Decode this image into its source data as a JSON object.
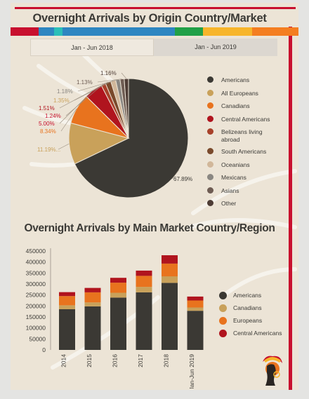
{
  "page": {
    "title": "Overnight Arrivals by Origin Country/Market",
    "tabs": [
      {
        "label": "Jan - Jun 2018"
      },
      {
        "label": "Jan - Jun 2019"
      }
    ],
    "strip_colors": [
      "#c8102e",
      "#2e86c1",
      "#2bbfb8",
      "#2e86c1",
      "#c8102e",
      "#22a047",
      "#f7b52a",
      "#f47e20"
    ]
  },
  "chart_data": [
    {
      "type": "pie",
      "title": "",
      "series": [
        {
          "name": "Americans",
          "value": 67.89,
          "label": "67.89%",
          "color": "#3b3934"
        },
        {
          "name": "All Europeans",
          "value": 11.19,
          "label": "11.19%...",
          "color": "#c9a15a"
        },
        {
          "name": "Canadians",
          "value": 8.34,
          "label": "8.34%",
          "color": "#e8731e"
        },
        {
          "name": "Central Americans",
          "value": 5.0,
          "label": "5.00%",
          "color": "#b0141e"
        },
        {
          "name": "Belizeans living abroad",
          "value": 1.24,
          "label": "1.24%",
          "color": "#a8412a"
        },
        {
          "name": "South Americans",
          "value": 1.51,
          "label": "1.51%",
          "color": "#7a4a2c"
        },
        {
          "name": "Oceanians",
          "value": 1.35,
          "label": "1.35%",
          "color": "#d1b79a"
        },
        {
          "name": "Mexicans",
          "value": 1.18,
          "label": "1.18%",
          "color": "#8a8782"
        },
        {
          "name": "Asians",
          "value": 1.13,
          "label": "1.13%",
          "color": "#6e5c53"
        },
        {
          "name": "Other",
          "value": 1.16,
          "label": "1.16%",
          "color": "#4d3c35"
        }
      ],
      "legend_position": "right"
    },
    {
      "type": "bar",
      "stacked": true,
      "title": "Overnight Arrivals by Main Market Country/Region",
      "categories": [
        "2014",
        "2015",
        "2016",
        "2017",
        "2018",
        "Jan-Jun 2019"
      ],
      "series": [
        {
          "name": "Americans",
          "color": "#3b3934",
          "values": [
            185000,
            198000,
            238000,
            262000,
            305000,
            178000
          ]
        },
        {
          "name": "Canadians",
          "color": "#c9a15a",
          "values": [
            18000,
            18000,
            22000,
            25000,
            30000,
            15000
          ]
        },
        {
          "name": "Europeans",
          "color": "#e8731e",
          "values": [
            42000,
            46000,
            46000,
            50000,
            58000,
            32000
          ]
        },
        {
          "name": "Central Americans",
          "color": "#b0141e",
          "values": [
            18000,
            20000,
            22000,
            24000,
            38000,
            18000
          ]
        }
      ],
      "yticks": [
        "450000",
        "400000",
        "350000",
        "300000",
        "250000",
        "200000",
        "150000",
        "100000",
        "50000",
        "0"
      ],
      "ylim": [
        0,
        450000
      ],
      "legend_position": "right"
    }
  ]
}
